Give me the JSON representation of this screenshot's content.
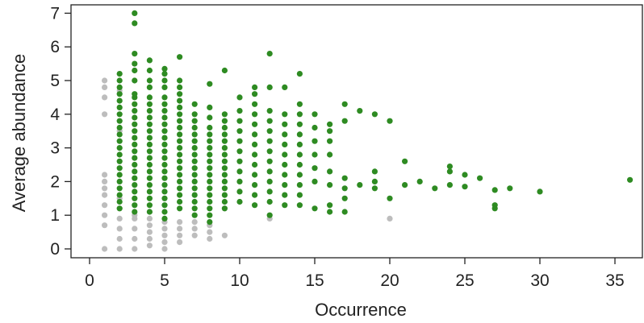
{
  "chart_data": {
    "type": "scatter",
    "xlabel": "Occurrence",
    "ylabel": "Average abundance",
    "xlim": [
      0,
      37
    ],
    "ylim": [
      0,
      7.2
    ],
    "xticks": [
      "0",
      "5",
      "10",
      "15",
      "20",
      "25",
      "30",
      "35"
    ],
    "yticks": [
      "0",
      "1",
      "2",
      "3",
      "4",
      "5",
      "6",
      "7"
    ],
    "grid": false,
    "legend": "none",
    "series": [
      {
        "color": "#2e8b22",
        "points": [
          [
            2,
            1.2
          ],
          [
            2,
            1.4
          ],
          [
            2,
            1.6
          ],
          [
            2,
            1.8
          ],
          [
            2,
            2.0
          ],
          [
            2,
            2.2
          ],
          [
            2,
            2.4
          ],
          [
            2,
            2.6
          ],
          [
            2,
            2.8
          ],
          [
            2,
            3.0
          ],
          [
            2,
            3.2
          ],
          [
            2,
            3.4
          ],
          [
            2,
            3.6
          ],
          [
            2,
            3.8
          ],
          [
            2,
            4.0
          ],
          [
            2,
            4.2
          ],
          [
            2,
            4.4
          ],
          [
            2,
            4.6
          ],
          [
            2,
            4.8
          ],
          [
            2,
            5.0
          ],
          [
            2,
            5.2
          ],
          [
            3,
            1.1
          ],
          [
            3,
            1.3
          ],
          [
            3,
            1.5
          ],
          [
            3,
            1.7
          ],
          [
            3,
            1.9
          ],
          [
            3,
            2.1
          ],
          [
            3,
            2.3
          ],
          [
            3,
            2.5
          ],
          [
            3,
            2.7
          ],
          [
            3,
            2.9
          ],
          [
            3,
            3.1
          ],
          [
            3,
            3.3
          ],
          [
            3,
            3.5
          ],
          [
            3,
            3.7
          ],
          [
            3,
            3.9
          ],
          [
            3,
            4.1
          ],
          [
            3,
            4.3
          ],
          [
            3,
            4.5
          ],
          [
            3,
            4.6
          ],
          [
            3,
            5.0
          ],
          [
            3,
            5.3
          ],
          [
            3,
            5.5
          ],
          [
            3,
            5.8
          ],
          [
            3,
            6.7
          ],
          [
            3,
            7.0
          ],
          [
            4,
            1.1
          ],
          [
            4,
            1.3
          ],
          [
            4,
            1.5
          ],
          [
            4,
            1.7
          ],
          [
            4,
            1.9
          ],
          [
            4,
            2.1
          ],
          [
            4,
            2.3
          ],
          [
            4,
            2.5
          ],
          [
            4,
            2.7
          ],
          [
            4,
            2.9
          ],
          [
            4,
            3.1
          ],
          [
            4,
            3.3
          ],
          [
            4,
            3.5
          ],
          [
            4,
            3.7
          ],
          [
            4,
            3.9
          ],
          [
            4,
            4.1
          ],
          [
            4,
            4.3
          ],
          [
            4,
            4.5
          ],
          [
            4,
            4.8
          ],
          [
            4,
            5.0
          ],
          [
            4,
            5.3
          ],
          [
            4,
            5.6
          ],
          [
            5,
            0.9
          ],
          [
            5,
            1.1
          ],
          [
            5,
            1.3
          ],
          [
            5,
            1.5
          ],
          [
            5,
            1.7
          ],
          [
            5,
            1.9
          ],
          [
            5,
            2.1
          ],
          [
            5,
            2.3
          ],
          [
            5,
            2.5
          ],
          [
            5,
            2.7
          ],
          [
            5,
            2.9
          ],
          [
            5,
            3.1
          ],
          [
            5,
            3.3
          ],
          [
            5,
            3.5
          ],
          [
            5,
            3.7
          ],
          [
            5,
            3.9
          ],
          [
            5,
            4.1
          ],
          [
            5,
            4.3
          ],
          [
            5,
            4.5
          ],
          [
            5,
            4.8
          ],
          [
            5,
            5.0
          ],
          [
            5,
            5.2
          ],
          [
            5,
            5.35
          ],
          [
            6,
            1.2
          ],
          [
            6,
            1.4
          ],
          [
            6,
            1.6
          ],
          [
            6,
            1.8
          ],
          [
            6,
            2.0
          ],
          [
            6,
            2.2
          ],
          [
            6,
            2.4
          ],
          [
            6,
            2.6
          ],
          [
            6,
            2.8
          ],
          [
            6,
            3.0
          ],
          [
            6,
            3.2
          ],
          [
            6,
            3.4
          ],
          [
            6,
            3.6
          ],
          [
            6,
            3.8
          ],
          [
            6,
            4.0
          ],
          [
            6,
            4.2
          ],
          [
            6,
            4.4
          ],
          [
            6,
            4.6
          ],
          [
            6,
            4.8
          ],
          [
            6,
            5.0
          ],
          [
            6,
            5.7
          ],
          [
            7,
            1.0
          ],
          [
            7,
            1.2
          ],
          [
            7,
            1.4
          ],
          [
            7,
            1.6
          ],
          [
            7,
            1.8
          ],
          [
            7,
            2.0
          ],
          [
            7,
            2.2
          ],
          [
            7,
            2.4
          ],
          [
            7,
            2.6
          ],
          [
            7,
            2.8
          ],
          [
            7,
            3.0
          ],
          [
            7,
            3.2
          ],
          [
            7,
            3.4
          ],
          [
            7,
            3.6
          ],
          [
            7,
            3.8
          ],
          [
            7,
            4.0
          ],
          [
            7,
            4.3
          ],
          [
            8,
            0.8
          ],
          [
            8,
            1.0
          ],
          [
            8,
            1.2
          ],
          [
            8,
            1.4
          ],
          [
            8,
            1.6
          ],
          [
            8,
            1.8
          ],
          [
            8,
            2.0
          ],
          [
            8,
            2.2
          ],
          [
            8,
            2.4
          ],
          [
            8,
            2.6
          ],
          [
            8,
            2.8
          ],
          [
            8,
            3.0
          ],
          [
            8,
            3.2
          ],
          [
            8,
            3.4
          ],
          [
            8,
            3.6
          ],
          [
            8,
            3.9
          ],
          [
            8,
            4.2
          ],
          [
            8,
            4.9
          ],
          [
            9,
            1.2
          ],
          [
            9,
            1.4
          ],
          [
            9,
            1.6
          ],
          [
            9,
            1.8
          ],
          [
            9,
            2.0
          ],
          [
            9,
            2.2
          ],
          [
            9,
            2.4
          ],
          [
            9,
            2.6
          ],
          [
            9,
            2.8
          ],
          [
            9,
            3.0
          ],
          [
            9,
            3.2
          ],
          [
            9,
            3.4
          ],
          [
            9,
            3.6
          ],
          [
            9,
            3.8
          ],
          [
            9,
            4.0
          ],
          [
            9,
            5.3
          ],
          [
            10,
            1.4
          ],
          [
            10,
            1.7
          ],
          [
            10,
            2.0
          ],
          [
            10,
            2.3
          ],
          [
            10,
            2.6
          ],
          [
            10,
            2.9
          ],
          [
            10,
            3.2
          ],
          [
            10,
            3.5
          ],
          [
            10,
            3.8
          ],
          [
            10,
            4.1
          ],
          [
            10,
            4.5
          ],
          [
            11,
            1.3
          ],
          [
            11,
            1.6
          ],
          [
            11,
            1.9
          ],
          [
            11,
            2.2
          ],
          [
            11,
            2.5
          ],
          [
            11,
            2.8
          ],
          [
            11,
            3.1
          ],
          [
            11,
            3.4
          ],
          [
            11,
            3.7
          ],
          [
            11,
            4.0
          ],
          [
            11,
            4.3
          ],
          [
            11,
            4.6
          ],
          [
            11,
            4.8
          ],
          [
            12,
            1.0
          ],
          [
            12,
            1.4
          ],
          [
            12,
            1.7
          ],
          [
            12,
            2.0
          ],
          [
            12,
            2.3
          ],
          [
            12,
            2.6
          ],
          [
            12,
            2.9
          ],
          [
            12,
            3.2
          ],
          [
            12,
            3.5
          ],
          [
            12,
            3.8
          ],
          [
            12,
            4.1
          ],
          [
            12,
            4.8
          ],
          [
            12,
            5.8
          ],
          [
            13,
            1.3
          ],
          [
            13,
            1.6
          ],
          [
            13,
            1.9
          ],
          [
            13,
            2.2
          ],
          [
            13,
            2.5
          ],
          [
            13,
            2.8
          ],
          [
            13,
            3.1
          ],
          [
            13,
            3.4
          ],
          [
            13,
            3.7
          ],
          [
            13,
            4.0
          ],
          [
            13,
            4.8
          ],
          [
            14,
            1.3
          ],
          [
            14,
            1.6
          ],
          [
            14,
            1.9
          ],
          [
            14,
            2.2
          ],
          [
            14,
            2.5
          ],
          [
            14,
            2.8
          ],
          [
            14,
            3.1
          ],
          [
            14,
            3.4
          ],
          [
            14,
            3.7
          ],
          [
            14,
            4.0
          ],
          [
            14,
            4.3
          ],
          [
            14,
            5.2
          ],
          [
            15,
            1.2
          ],
          [
            15,
            2.0
          ],
          [
            15,
            2.4
          ],
          [
            15,
            2.8
          ],
          [
            15,
            3.2
          ],
          [
            15,
            3.6
          ],
          [
            15,
            4.0
          ],
          [
            16,
            1.1
          ],
          [
            16,
            1.3
          ],
          [
            16,
            1.9
          ],
          [
            16,
            2.3
          ],
          [
            16,
            2.8
          ],
          [
            16,
            3.2
          ],
          [
            16,
            3.5
          ],
          [
            16,
            3.7
          ],
          [
            17,
            1.1
          ],
          [
            17,
            1.5
          ],
          [
            17,
            1.8
          ],
          [
            17,
            2.1
          ],
          [
            17,
            3.8
          ],
          [
            17,
            4.3
          ],
          [
            18,
            1.9
          ],
          [
            18,
            4.1
          ],
          [
            19,
            1.8
          ],
          [
            19,
            2.0
          ],
          [
            19,
            2.3
          ],
          [
            19,
            4.0
          ],
          [
            20,
            1.5
          ],
          [
            20,
            3.8
          ],
          [
            21,
            1.9
          ],
          [
            21,
            2.6
          ],
          [
            22,
            2.0
          ],
          [
            23,
            1.8
          ],
          [
            24,
            1.9
          ],
          [
            24,
            2.3
          ],
          [
            24,
            2.45
          ],
          [
            25,
            1.85
          ],
          [
            25,
            2.2
          ],
          [
            26,
            2.1
          ],
          [
            27,
            1.2
          ],
          [
            27,
            1.3
          ],
          [
            27,
            1.75
          ],
          [
            28,
            1.8
          ],
          [
            30,
            1.7
          ],
          [
            36,
            2.05
          ]
        ]
      },
      {
        "color": "#bdbdbd",
        "points": [
          [
            1,
            0.0
          ],
          [
            1,
            0.7
          ],
          [
            1,
            1.0
          ],
          [
            1,
            1.3
          ],
          [
            1,
            1.6
          ],
          [
            1,
            1.8
          ],
          [
            1,
            2.0
          ],
          [
            1,
            2.2
          ],
          [
            1,
            4.0
          ],
          [
            1,
            4.5
          ],
          [
            1,
            4.8
          ],
          [
            1,
            5.0
          ],
          [
            2,
            0.0
          ],
          [
            2,
            0.3
          ],
          [
            2,
            0.6
          ],
          [
            2,
            0.9
          ],
          [
            2,
            1.2
          ],
          [
            2,
            1.5
          ],
          [
            2,
            3.5
          ],
          [
            2,
            4.7
          ],
          [
            3,
            0.0
          ],
          [
            3,
            0.3
          ],
          [
            3,
            0.6
          ],
          [
            3,
            0.9
          ],
          [
            3,
            1.0
          ],
          [
            4,
            0.1
          ],
          [
            4,
            0.3
          ],
          [
            4,
            0.5
          ],
          [
            4,
            0.7
          ],
          [
            4,
            0.9
          ],
          [
            4,
            1.1
          ],
          [
            5,
            0.0
          ],
          [
            5,
            0.2
          ],
          [
            5,
            0.4
          ],
          [
            5,
            0.6
          ],
          [
            5,
            0.8
          ],
          [
            6,
            0.2
          ],
          [
            6,
            0.4
          ],
          [
            6,
            0.6
          ],
          [
            6,
            0.8
          ],
          [
            7,
            0.4
          ],
          [
            7,
            0.6
          ],
          [
            7,
            0.8
          ],
          [
            8,
            0.3
          ],
          [
            8,
            0.5
          ],
          [
            8,
            0.7
          ],
          [
            9,
            0.4
          ],
          [
            9,
            1.2
          ],
          [
            12,
            0.9
          ],
          [
            20,
            0.9
          ]
        ]
      }
    ]
  }
}
